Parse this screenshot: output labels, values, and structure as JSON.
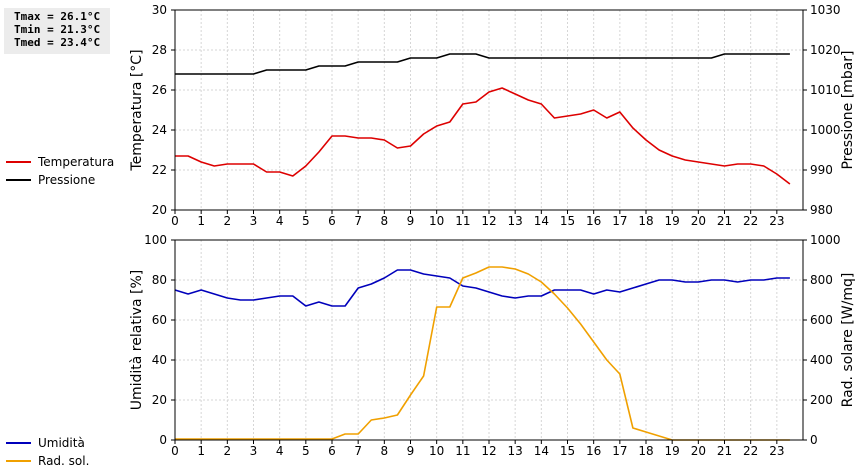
{
  "stats": {
    "tmax": "Tmax = 26.1°C",
    "tmin": "Tmin = 21.3°C",
    "tmed": "Tmed = 23.4°C"
  },
  "legend_top": [
    {
      "label": "Temperatura",
      "color": "#dd0000"
    },
    {
      "label": "Pressione",
      "color": "#000000"
    }
  ],
  "legend_bottom": [
    {
      "label": "Umidità",
      "color": "#0000bb"
    },
    {
      "label": "Rad. sol.",
      "color": "#f0a000"
    }
  ],
  "chart_data": [
    {
      "type": "line",
      "xlim": [
        0,
        24
      ],
      "x_ticks": [
        0,
        1,
        2,
        3,
        4,
        5,
        6,
        7,
        8,
        9,
        10,
        11,
        12,
        13,
        14,
        15,
        16,
        17,
        18,
        19,
        20,
        21,
        22,
        23
      ],
      "ylabel_left": "Temperatura [°C]",
      "ylim_left": [
        20,
        30
      ],
      "yticks_left": [
        20,
        22,
        24,
        26,
        28,
        30
      ],
      "ylabel_right": "Pressione [mbar]",
      "ylim_right": [
        980,
        1030
      ],
      "yticks_right": [
        980,
        990,
        1000,
        1010,
        1020,
        1030
      ],
      "grid": true,
      "series": [
        {
          "name": "Temperatura",
          "axis": "left",
          "color": "#dd0000",
          "x": [
            0,
            0.5,
            1,
            1.5,
            2,
            2.5,
            3,
            3.5,
            4,
            4.5,
            5,
            5.5,
            6,
            6.5,
            7,
            7.5,
            8,
            8.5,
            9,
            9.5,
            10,
            10.5,
            11,
            11.5,
            12,
            12.5,
            13,
            13.5,
            14,
            14.5,
            15,
            15.5,
            16,
            16.5,
            17,
            17.5,
            18,
            18.5,
            19,
            19.5,
            20,
            20.5,
            21,
            21.5,
            22,
            22.5,
            23,
            23.5
          ],
          "values": [
            22.7,
            22.7,
            22.4,
            22.2,
            22.3,
            22.3,
            22.3,
            21.9,
            21.9,
            21.7,
            22.2,
            22.9,
            23.7,
            23.7,
            23.6,
            23.6,
            23.5,
            23.1,
            23.2,
            23.8,
            24.2,
            24.4,
            25.3,
            25.4,
            25.9,
            26.1,
            25.8,
            25.5,
            25.3,
            24.6,
            24.7,
            24.8,
            25.0,
            24.6,
            24.9,
            24.1,
            23.5,
            23.0,
            22.7,
            22.5,
            22.4,
            22.3,
            22.2,
            22.3,
            22.3,
            22.2,
            21.8,
            21.3
          ]
        },
        {
          "name": "Pressione",
          "axis": "right",
          "color": "#000000",
          "x": [
            0,
            0.5,
            1,
            1.5,
            2,
            2.5,
            3,
            3.5,
            4,
            4.5,
            5,
            5.5,
            6,
            6.5,
            7,
            7.5,
            8,
            8.5,
            9,
            9.5,
            10,
            10.5,
            11,
            11.5,
            12,
            12.5,
            13,
            13.5,
            14,
            14.5,
            15,
            15.5,
            16,
            16.5,
            17,
            17.5,
            18,
            18.5,
            19,
            19.5,
            20,
            20.5,
            21,
            21.5,
            22,
            22.5,
            23,
            23.5
          ],
          "values": [
            1014,
            1014,
            1014,
            1014,
            1014,
            1014,
            1014,
            1015,
            1015,
            1015,
            1015,
            1016,
            1016,
            1016,
            1017,
            1017,
            1017,
            1017,
            1018,
            1018,
            1018,
            1019,
            1019,
            1019,
            1018,
            1018,
            1018,
            1018,
            1018,
            1018,
            1018,
            1018,
            1018,
            1018,
            1018,
            1018,
            1018,
            1018,
            1018,
            1018,
            1018,
            1018,
            1019,
            1019,
            1019,
            1019,
            1019,
            1019
          ]
        }
      ]
    },
    {
      "type": "line",
      "xlim": [
        0,
        24
      ],
      "x_ticks": [
        0,
        1,
        2,
        3,
        4,
        5,
        6,
        7,
        8,
        9,
        10,
        11,
        12,
        13,
        14,
        15,
        16,
        17,
        18,
        19,
        20,
        21,
        22,
        23
      ],
      "ylabel_left": "Umidità relativa [%]",
      "ylim_left": [
        0,
        100
      ],
      "yticks_left": [
        0,
        20,
        40,
        60,
        80,
        100
      ],
      "ylabel_right": "Rad. solare [W/mq]",
      "ylim_right": [
        0,
        1000
      ],
      "yticks_right": [
        0,
        200,
        400,
        600,
        800,
        1000
      ],
      "grid": true,
      "series": [
        {
          "name": "Umidità",
          "axis": "left",
          "color": "#0000bb",
          "x": [
            0,
            0.5,
            1,
            1.5,
            2,
            2.5,
            3,
            3.5,
            4,
            4.5,
            5,
            5.5,
            6,
            6.5,
            7,
            7.5,
            8,
            8.5,
            9,
            9.5,
            10,
            10.5,
            11,
            11.5,
            12,
            12.5,
            13,
            13.5,
            14,
            14.5,
            15,
            15.5,
            16,
            16.5,
            17,
            17.5,
            18,
            18.5,
            19,
            19.5,
            20,
            20.5,
            21,
            21.5,
            22,
            22.5,
            23,
            23.5
          ],
          "values": [
            75,
            73,
            75,
            73,
            71,
            70,
            70,
            71,
            72,
            72,
            67,
            69,
            67,
            67,
            76,
            78,
            81,
            85,
            85,
            83,
            82,
            81,
            77,
            76,
            74,
            72,
            71,
            72,
            72,
            75,
            75,
            75,
            73,
            75,
            74,
            76,
            78,
            80,
            80,
            79,
            79,
            80,
            80,
            79,
            80,
            80,
            81,
            81
          ]
        },
        {
          "name": "Rad. sol.",
          "axis": "right",
          "color": "#f0a000",
          "x": [
            0,
            1,
            2,
            3,
            4,
            5,
            6,
            6.5,
            7,
            7.5,
            8,
            8.5,
            9,
            9.5,
            10,
            10.5,
            11,
            11.5,
            12,
            12.5,
            13,
            13.5,
            14,
            14.5,
            15,
            15.5,
            16,
            16.5,
            17,
            17.5,
            18,
            18.5,
            19,
            20,
            21,
            22,
            23,
            23.5
          ],
          "values": [
            5,
            5,
            5,
            5,
            5,
            5,
            5,
            30,
            30,
            100,
            110,
            125,
            225,
            320,
            665,
            665,
            810,
            835,
            865,
            865,
            855,
            830,
            790,
            730,
            660,
            580,
            490,
            400,
            330,
            60,
            40,
            20,
            0,
            0,
            0,
            0,
            0,
            0
          ]
        }
      ]
    }
  ]
}
